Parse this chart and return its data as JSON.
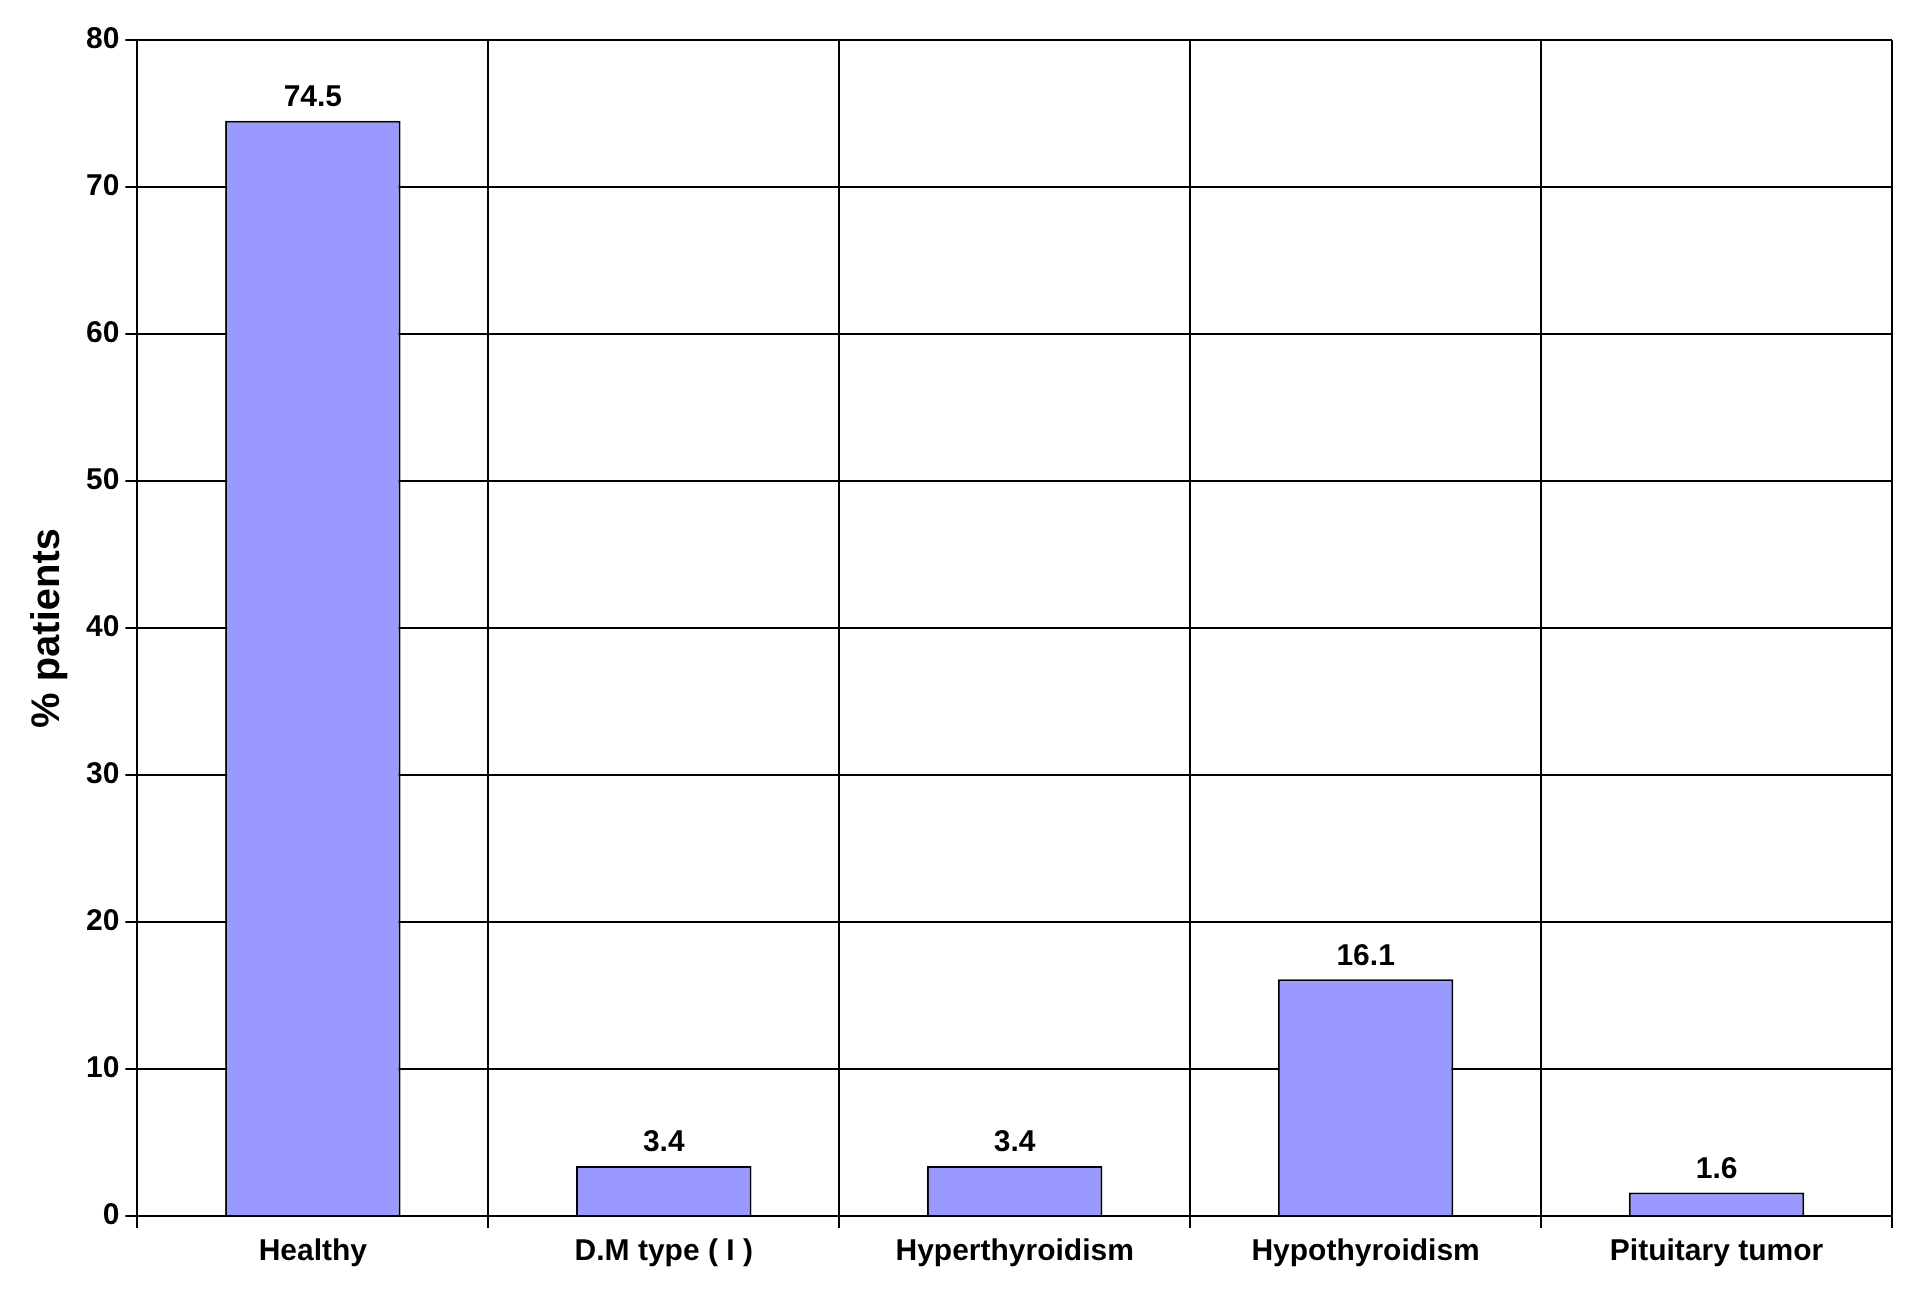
{
  "chart_data": {
    "type": "bar",
    "ylabel": "% patients",
    "categories": [
      "Healthy",
      "D.M type ( I )",
      "Hyperthyroidism",
      "Hypothyroidism",
      "Pituitary tumor"
    ],
    "values": [
      74.5,
      3.4,
      3.4,
      16.1,
      1.6
    ],
    "color": "#9999ff",
    "ylim": [
      0,
      80
    ],
    "yticks": [
      0,
      10,
      20,
      30,
      40,
      50,
      60,
      70,
      80
    ],
    "grid": true,
    "data_labels": true
  }
}
